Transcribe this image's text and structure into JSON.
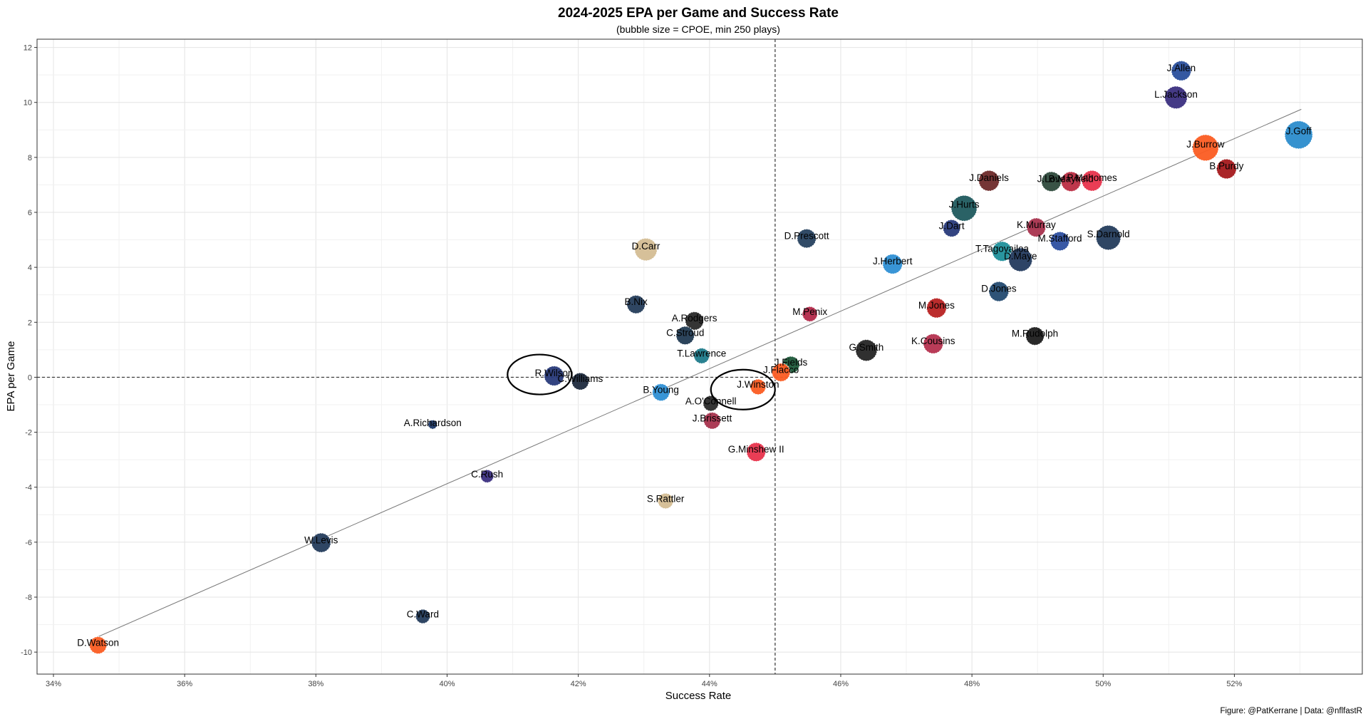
{
  "chart_data": {
    "type": "scatter",
    "title": "2024-2025 EPA per Game and Success Rate",
    "subtitle": "(bubble size = CPOE, min 250 plays)",
    "xlabel": "Success Rate",
    "ylabel": "EPA per Game",
    "caption": "Figure: @PatKerrane | Data: @nflfastR",
    "xlim": [
      0.3375,
      0.5395
    ],
    "ylim": [
      -10.8,
      12.3
    ],
    "x_ticks": [
      0.34,
      0.36,
      0.38,
      0.4,
      0.42,
      0.44,
      0.46,
      0.48,
      0.5,
      0.52
    ],
    "x_tick_labels": [
      "34%",
      "36%",
      "38%",
      "40%",
      "42%",
      "44%",
      "46%",
      "48%",
      "50%",
      "52%"
    ],
    "y_ticks": [
      -10,
      -8,
      -6,
      -4,
      -2,
      0,
      2,
      4,
      6,
      8,
      10,
      12
    ],
    "y_tick_labels": [
      "-10",
      "-8",
      "-6",
      "-4",
      "-2",
      "0",
      "2",
      "4",
      "6",
      "8",
      "10",
      "12"
    ],
    "grid": true,
    "reference_lines": {
      "x": 0.45,
      "y": 0
    },
    "trend_line": {
      "x": [
        0.3467,
        0.5302
      ],
      "y": [
        -9.45,
        9.75
      ]
    },
    "highlights": [
      {
        "x": 0.4141,
        "y": 0.1
      },
      {
        "x": 0.4451,
        "y": -0.45
      }
    ],
    "points": [
      {
        "label": "J.Allen",
        "x": 0.5119,
        "y": 11.15,
        "color": "#2a4f9c",
        "size": 0.62
      },
      {
        "label": "L.Jackson",
        "x": 0.5111,
        "y": 10.18,
        "color": "#3b2f80",
        "size": 0.75
      },
      {
        "label": "J.Goff",
        "x": 0.5298,
        "y": 8.82,
        "color": "#2b8ccc",
        "size": 1.0
      },
      {
        "label": "J.Burrow",
        "x": 0.5156,
        "y": 8.35,
        "color": "#fb5c22",
        "size": 0.92
      },
      {
        "label": "B.Purdy",
        "x": 0.5188,
        "y": 7.58,
        "color": "#a5191c",
        "size": 0.62
      },
      {
        "label": "P.Mahomes",
        "x": 0.4983,
        "y": 7.15,
        "color": "#e8334c",
        "size": 0.66
      },
      {
        "label": "B.Mayfield",
        "x": 0.4951,
        "y": 7.12,
        "color": "#bb2c42",
        "size": 0.62
      },
      {
        "label": "J.Love",
        "x": 0.4921,
        "y": 7.12,
        "color": "#2e4a3c",
        "size": 0.62
      },
      {
        "label": "J.Daniels",
        "x": 0.4826,
        "y": 7.15,
        "color": "#6e2a2a",
        "size": 0.66
      },
      {
        "label": "J.Hurts",
        "x": 0.4788,
        "y": 6.15,
        "color": "#1f5a5e",
        "size": 0.9
      },
      {
        "label": "K.Murray",
        "x": 0.4898,
        "y": 5.45,
        "color": "#a8324d",
        "size": 0.58
      },
      {
        "label": "J.Dart",
        "x": 0.4769,
        "y": 5.42,
        "color": "#283a7a",
        "size": 0.5
      },
      {
        "label": "S.Darnold",
        "x": 0.5008,
        "y": 5.08,
        "color": "#243c5c",
        "size": 0.85
      },
      {
        "label": "M.Stafford",
        "x": 0.4934,
        "y": 4.95,
        "color": "#2d4fa0",
        "size": 0.58
      },
      {
        "label": "T.Tagovailoa",
        "x": 0.4846,
        "y": 4.58,
        "color": "#1e8f9a",
        "size": 0.62
      },
      {
        "label": "D.Maye",
        "x": 0.4874,
        "y": 4.28,
        "color": "#233a5e",
        "size": 0.8
      },
      {
        "label": "D.Prescott",
        "x": 0.4548,
        "y": 5.05,
        "color": "#26415f",
        "size": 0.58
      },
      {
        "label": "J.Herbert",
        "x": 0.4679,
        "y": 4.12,
        "color": "#2e8fd4",
        "size": 0.62
      },
      {
        "label": "D.Jones",
        "x": 0.4841,
        "y": 3.12,
        "color": "#234a70",
        "size": 0.62
      },
      {
        "label": "D.Carr",
        "x": 0.4303,
        "y": 4.65,
        "color": "#d4bd94",
        "size": 0.75
      },
      {
        "label": "M.Jones",
        "x": 0.4746,
        "y": 2.52,
        "color": "#b82222",
        "size": 0.62
      },
      {
        "label": "M.Penix",
        "x": 0.4553,
        "y": 2.3,
        "color": "#b3294a",
        "size": 0.4
      },
      {
        "label": "B.Nix",
        "x": 0.4288,
        "y": 2.65,
        "color": "#243c5a",
        "size": 0.55
      },
      {
        "label": "A.Rodgers",
        "x": 0.4377,
        "y": 2.05,
        "color": "#2a2a2a",
        "size": 0.55
      },
      {
        "label": "C.Stroud",
        "x": 0.4363,
        "y": 1.52,
        "color": "#213a52",
        "size": 0.55
      },
      {
        "label": "M.Rudolph",
        "x": 0.4896,
        "y": 1.5,
        "color": "#1e1e1e",
        "size": 0.55
      },
      {
        "label": "K.Cousins",
        "x": 0.4741,
        "y": 1.22,
        "color": "#b5324f",
        "size": 0.62
      },
      {
        "label": "G.Smith",
        "x": 0.4639,
        "y": 0.98,
        "color": "#252525",
        "size": 0.7
      },
      {
        "label": "T.Lawrence",
        "x": 0.4388,
        "y": 0.78,
        "color": "#1e7a8a",
        "size": 0.42
      },
      {
        "label": "J.Fields",
        "x": 0.4524,
        "y": 0.45,
        "color": "#1d5a3a",
        "size": 0.5
      },
      {
        "label": "J.Flacco",
        "x": 0.4509,
        "y": 0.18,
        "color": "#fb5c22",
        "size": 0.55
      },
      {
        "label": "R.Wilson",
        "x": 0.4163,
        "y": 0.05,
        "color": "#283a7a",
        "size": 0.62
      },
      {
        "label": "C.Williams",
        "x": 0.4203,
        "y": -0.15,
        "color": "#1e2a3e",
        "size": 0.5
      },
      {
        "label": "J.Winston",
        "x": 0.4474,
        "y": -0.35,
        "color": "#fb5c22",
        "size": 0.42
      },
      {
        "label": "B.Young",
        "x": 0.4326,
        "y": -0.55,
        "color": "#2e8fd4",
        "size": 0.5
      },
      {
        "label": "A.O'Connell",
        "x": 0.4402,
        "y": -0.95,
        "color": "#2a2a2a",
        "size": 0.42
      },
      {
        "label": "J.Brissett",
        "x": 0.4404,
        "y": -1.58,
        "color": "#a8324d",
        "size": 0.48
      },
      {
        "label": "A.Richardson",
        "x": 0.3978,
        "y": -1.72,
        "color": "#1e3a6a",
        "size": 0.12
      },
      {
        "label": "G.Minshew II",
        "x": 0.4471,
        "y": -2.72,
        "color": "#e8334c",
        "size": 0.58
      },
      {
        "label": "C.Rush",
        "x": 0.4061,
        "y": -3.6,
        "color": "#3b2f80",
        "size": 0.3
      },
      {
        "label": "S.Rattler",
        "x": 0.4333,
        "y": -4.5,
        "color": "#d4bd94",
        "size": 0.42
      },
      {
        "label": "W.Levis",
        "x": 0.3808,
        "y": -6.02,
        "color": "#243c5c",
        "size": 0.6
      },
      {
        "label": "C.Ward",
        "x": 0.3963,
        "y": -8.7,
        "color": "#243c5c",
        "size": 0.36
      },
      {
        "label": "D.Watson",
        "x": 0.3468,
        "y": -9.75,
        "color": "#fb5c22",
        "size": 0.5
      }
    ]
  }
}
